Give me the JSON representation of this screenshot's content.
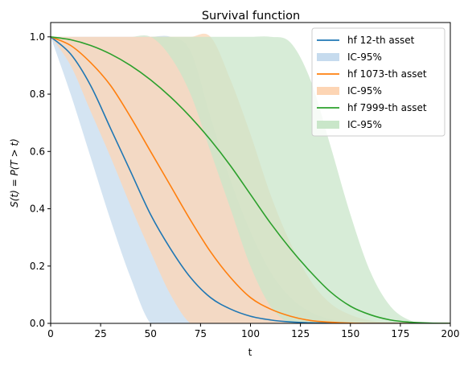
{
  "chart_data": {
    "type": "line",
    "title": "Survival function",
    "xlabel": "t",
    "ylabel": "S(t) = P(T > t)",
    "xlim": [
      0,
      200
    ],
    "ylim": [
      0,
      1.05
    ],
    "xticks": [
      0,
      25,
      50,
      75,
      100,
      125,
      150,
      175,
      200
    ],
    "yticks": [
      0.0,
      0.2,
      0.4,
      0.6,
      0.8,
      1.0
    ],
    "xtick_labels": [
      "0",
      "25",
      "50",
      "75",
      "100",
      "125",
      "150",
      "175",
      "200"
    ],
    "ytick_labels": [
      "0.0",
      "0.2",
      "0.4",
      "0.6",
      "0.8",
      "1.0"
    ],
    "legend_position": "top-right",
    "grid": false,
    "series": [
      {
        "name": "hf 12-th asset",
        "band_name": "IC-95%",
        "color": "#1f77b4",
        "band_color": "#c6dbee",
        "x": [
          0,
          10,
          20,
          30,
          40,
          50,
          60,
          70,
          80,
          90,
          100,
          110,
          120,
          130,
          140,
          150,
          160,
          170,
          180,
          190,
          200
        ],
        "y": [
          1.0,
          0.94,
          0.83,
          0.68,
          0.53,
          0.38,
          0.26,
          0.16,
          0.09,
          0.05,
          0.025,
          0.012,
          0.005,
          0.002,
          0.001,
          0.0,
          0.0,
          0.0,
          0.0,
          0.0,
          0.0
        ],
        "upper": [
          1.0,
          1.0,
          1.0,
          1.0,
          1.0,
          1.0,
          1.0,
          0.95,
          0.72,
          0.5,
          0.32,
          0.18,
          0.09,
          0.04,
          0.015,
          0.005,
          0.001,
          0.0,
          0.0,
          0.0,
          0.0
        ],
        "lower": [
          1.0,
          0.8,
          0.58,
          0.36,
          0.16,
          0.0,
          0.0,
          0.0,
          0.0,
          0.0,
          0.0,
          0.0,
          0.0,
          0.0,
          0.0,
          0.0,
          0.0,
          0.0,
          0.0,
          0.0,
          0.0
        ]
      },
      {
        "name": "hf 1073-th asset",
        "band_name": "IC-95%",
        "color": "#ff7f0e",
        "band_color": "#fdd5b4",
        "x": [
          0,
          10,
          20,
          30,
          40,
          50,
          60,
          70,
          80,
          90,
          100,
          110,
          120,
          130,
          140,
          150,
          160,
          170,
          180,
          190,
          200
        ],
        "y": [
          1.0,
          0.97,
          0.91,
          0.83,
          0.72,
          0.6,
          0.48,
          0.36,
          0.25,
          0.16,
          0.09,
          0.05,
          0.025,
          0.01,
          0.004,
          0.001,
          0.0,
          0.0,
          0.0,
          0.0,
          0.0
        ],
        "upper": [
          1.0,
          1.0,
          1.0,
          1.0,
          1.0,
          1.0,
          1.0,
          1.0,
          1.0,
          0.85,
          0.66,
          0.45,
          0.28,
          0.15,
          0.07,
          0.03,
          0.01,
          0.002,
          0.0,
          0.0,
          0.0
        ],
        "lower": [
          1.0,
          0.9,
          0.74,
          0.58,
          0.41,
          0.25,
          0.1,
          0.0,
          0.0,
          0.0,
          0.0,
          0.0,
          0.0,
          0.0,
          0.0,
          0.0,
          0.0,
          0.0,
          0.0,
          0.0,
          0.0
        ]
      },
      {
        "name": "hf 7999-th asset",
        "band_name": "IC-95%",
        "color": "#2ca02c",
        "band_color": "#c9e6c9",
        "x": [
          0,
          10,
          20,
          30,
          40,
          50,
          60,
          70,
          80,
          90,
          100,
          110,
          120,
          130,
          140,
          150,
          160,
          170,
          180,
          190,
          200
        ],
        "y": [
          1.0,
          0.99,
          0.97,
          0.94,
          0.9,
          0.85,
          0.79,
          0.72,
          0.64,
          0.55,
          0.45,
          0.35,
          0.26,
          0.18,
          0.11,
          0.06,
          0.03,
          0.012,
          0.004,
          0.001,
          0.0
        ],
        "upper": [
          1.0,
          1.0,
          1.0,
          1.0,
          1.0,
          1.0,
          1.0,
          1.0,
          1.0,
          1.0,
          1.0,
          1.0,
          0.98,
          0.85,
          0.62,
          0.38,
          0.18,
          0.06,
          0.01,
          0.0,
          0.0
        ],
        "lower": [
          1.0,
          1.0,
          1.0,
          1.0,
          1.0,
          1.0,
          0.93,
          0.8,
          0.6,
          0.4,
          0.2,
          0.06,
          0.0,
          0.0,
          0.0,
          0.0,
          0.0,
          0.0,
          0.0,
          0.0,
          0.0
        ]
      }
    ]
  }
}
